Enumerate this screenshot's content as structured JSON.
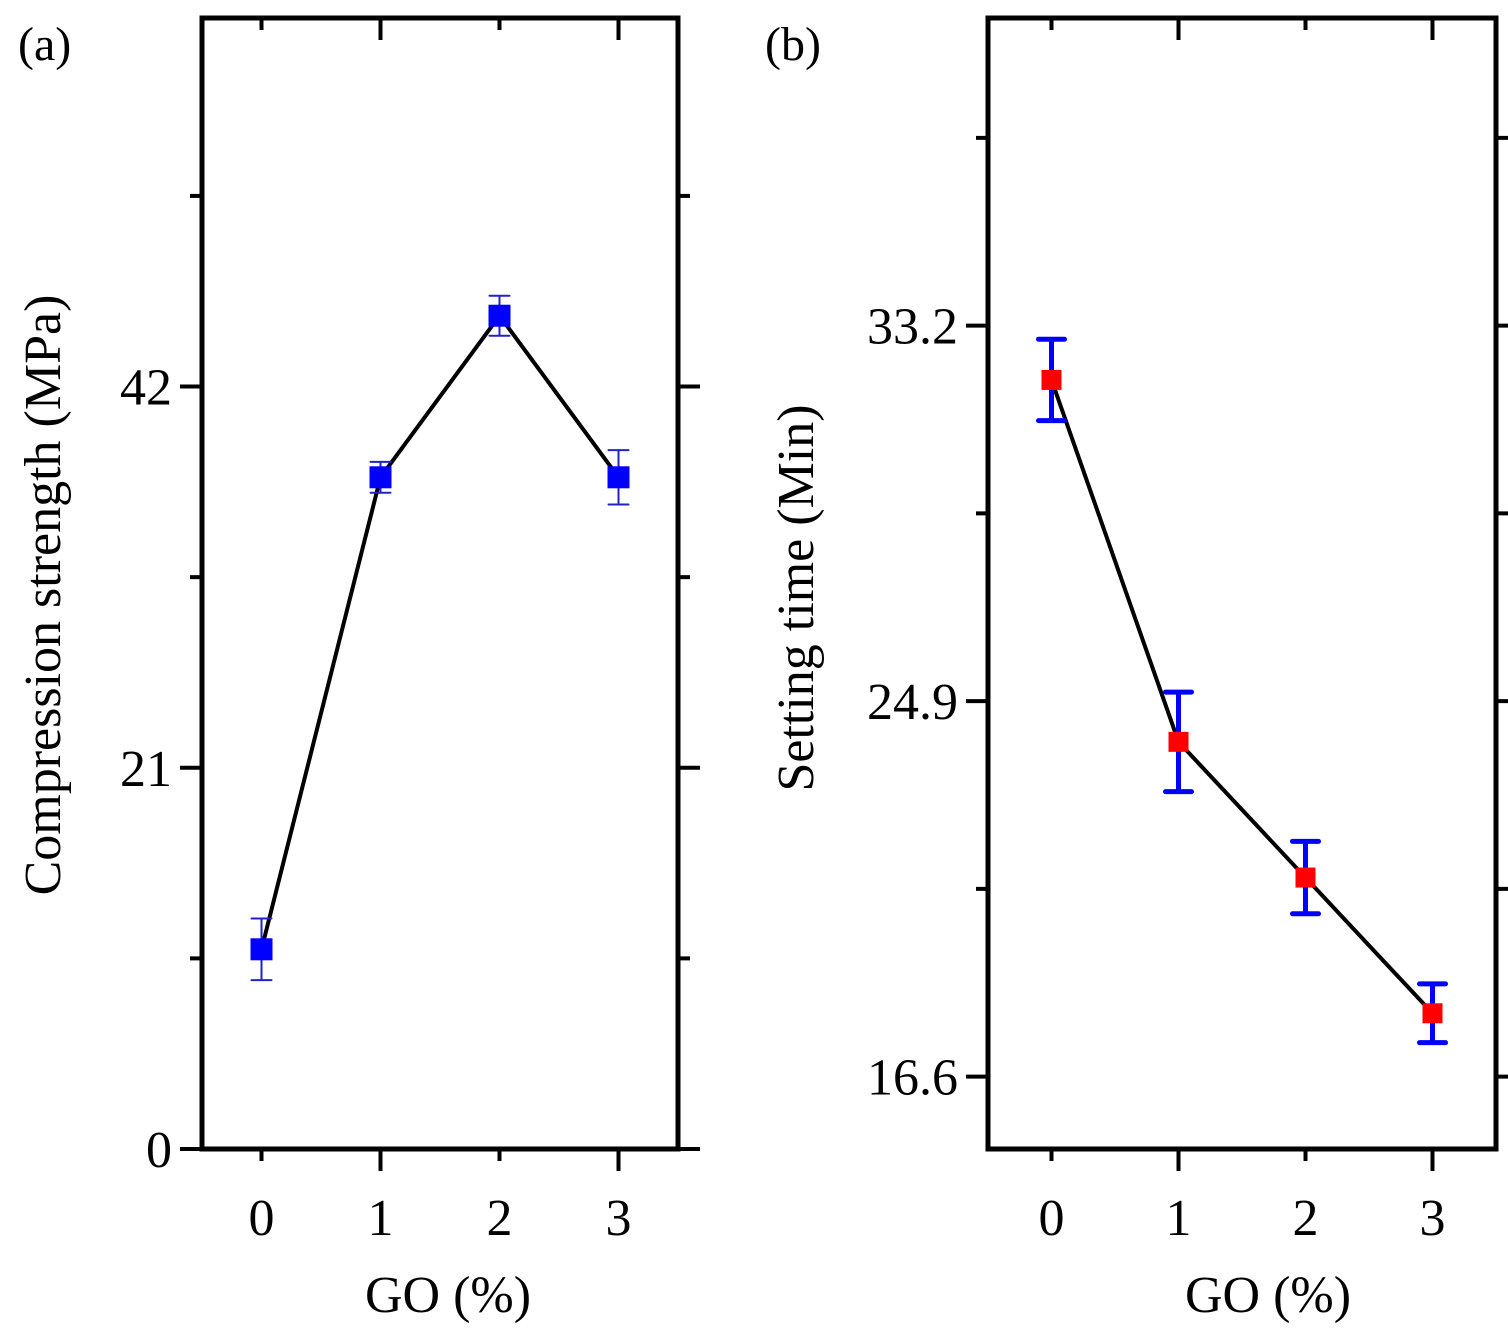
{
  "chart_data": [
    {
      "type": "line",
      "panel_label": "(a)",
      "xlabel": "GO (%)",
      "ylabel": "Compression strength (MPa)",
      "x": [
        0,
        1,
        2,
        3
      ],
      "xticks": [
        "0",
        "1",
        "2",
        "3"
      ],
      "xlim": [
        -0.5,
        3.5
      ],
      "ylim": [
        0,
        62.3
      ],
      "yticks": [
        0,
        21,
        42
      ],
      "ytick_labels": [
        "0",
        "21",
        "42"
      ],
      "yminor": [
        10.5,
        31.5,
        52.5
      ],
      "series": [
        {
          "name": "Compression strength",
          "values": [
            11.0,
            37.0,
            45.9,
            37.0
          ],
          "errors": [
            1.7,
            0.85,
            1.1,
            1.5
          ],
          "marker": "square",
          "marker_color": "#0000ff",
          "error_color": "#2222cc",
          "line_color": "#000000"
        }
      ],
      "grid": false
    },
    {
      "type": "line",
      "panel_label": "(b)",
      "xlabel": "GO (%)",
      "ylabel": "Setting time (Min)",
      "x": [
        0,
        1,
        2,
        3
      ],
      "xticks": [
        "0",
        "1",
        "2",
        "3"
      ],
      "xlim": [
        -0.5,
        3.5
      ],
      "ylim": [
        15.0,
        40.0
      ],
      "yticks": [
        16.6,
        24.9,
        33.2
      ],
      "ytick_labels": [
        "16.6",
        "24.9",
        "33.2"
      ],
      "yminor": [
        20.75,
        29.05,
        37.35
      ],
      "series": [
        {
          "name": "Setting time",
          "values": [
            32.0,
            24.0,
            21.0,
            18.0
          ],
          "errors": [
            0.9,
            1.1,
            0.8,
            0.65
          ],
          "marker": "square",
          "marker_color": "#ff0000",
          "error_color": "#0000ff",
          "line_color": "#000000"
        }
      ],
      "grid": false
    }
  ]
}
